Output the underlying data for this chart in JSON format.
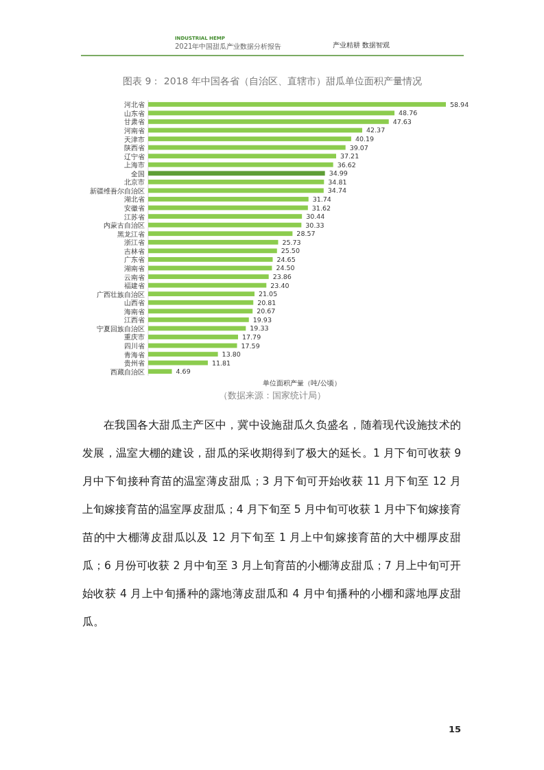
{
  "chart_data": {
    "type": "bar",
    "orientation": "horizontal",
    "value_labels": [
      "58.94",
      "48.76",
      "47.63",
      "42.37",
      "40.19",
      "39.07",
      "37.21",
      "36.62",
      "34.99",
      "34.81",
      "34.74",
      "31.74",
      "31.62",
      "30.44",
      "30.33",
      "28.57",
      "25.73",
      "25.50",
      "24.65",
      "24.50",
      "23.86",
      "23.40",
      "21.05",
      "20.81",
      "20.67",
      "19.93",
      "19.33",
      "17.79",
      "17.59",
      "13.80",
      "11.81",
      "4.69"
    ],
    "title": "图表 9：  2018 年中国各省（自治区、直辖市）甜瓜单位面积产量情况",
    "xlabel": "单位面积产量（吨/公顷）",
    "categories": [
      "河北省",
      "山东省",
      "甘肃省",
      "河南省",
      "天津市",
      "陕西省",
      "辽宁省",
      "上海市",
      "全国",
      "北京市",
      "新疆维吾尔自治区",
      "湖北省",
      "安徽省",
      "江苏省",
      "内蒙古自治区",
      "黑龙江省",
      "浙江省",
      "吉林省",
      "广东省",
      "湖南省",
      "云南省",
      "福建省",
      "广西壮族自治区",
      "山西省",
      "海南省",
      "江西省",
      "宁夏回族自治区",
      "重庆市",
      "四川省",
      "青海省",
      "贵州省",
      "西藏自治区"
    ],
    "values": [
      58.94,
      48.76,
      47.63,
      42.37,
      40.19,
      39.07,
      37.21,
      36.62,
      34.99,
      34.81,
      34.74,
      31.74,
      31.62,
      30.44,
      30.33,
      28.57,
      25.73,
      25.5,
      24.65,
      24.5,
      23.86,
      23.4,
      21.05,
      20.81,
      20.67,
      19.93,
      19.33,
      17.79,
      17.59,
      13.8,
      11.81,
      4.69
    ],
    "colors": [
      "#8ccc4e",
      "#8ccc4e",
      "#8ccc4e",
      "#8ccc4e",
      "#8ccc4e",
      "#8ccc4e",
      "#8ccc4e",
      "#8ccc4e",
      "#5e9e36",
      "#8ccc4e",
      "#8ccc4e",
      "#8ccc4e",
      "#8ccc4e",
      "#8ccc4e",
      "#8ccc4e",
      "#8ccc4e",
      "#8ccc4e",
      "#8ccc4e",
      "#8ccc4e",
      "#8ccc4e",
      "#8ccc4e",
      "#8ccc4e",
      "#8ccc4e",
      "#8ccc4e",
      "#8ccc4e",
      "#8ccc4e",
      "#8ccc4e",
      "#8ccc4e",
      "#8ccc4e",
      "#8ccc4e",
      "#8ccc4e",
      "#8ccc4e"
    ],
    "annotations": [
      "INDUSTRIAL HEMP",
      "2021年中国甜瓜产业数据分析报告",
      "产业精耕  数据智观",
      "（数据来源：国家统计局）",
      "在我国各大甜瓜主产区中，冀中设施甜瓜久负盛名，随着现代设施技术的发展，温室大棚的建设，甜瓜的采收期得到了极大的延长。1 月下旬可收获 9 月中下旬接种育苗的温室薄皮甜瓜；3 月下旬可开始收获 11 月下旬至 12 月上旬嫁接育苗的温室厚皮甜瓜；4 月下旬至 5 月中旬可收获 1 月中下旬嫁接育苗的中大棚薄皮甜瓜以及 12 月下旬至 1 月上中旬嫁接育苗的大中棚厚皮甜瓜；6 月份可收获 2 月中旬至 3 月上旬育苗的小棚薄皮甜瓜；7 月上中旬可开始收获 4 月上中旬播种的露地薄皮甜瓜和 4 月中旬播种的小棚和露地厚皮甜瓜。",
      "15"
    ]
  }
}
